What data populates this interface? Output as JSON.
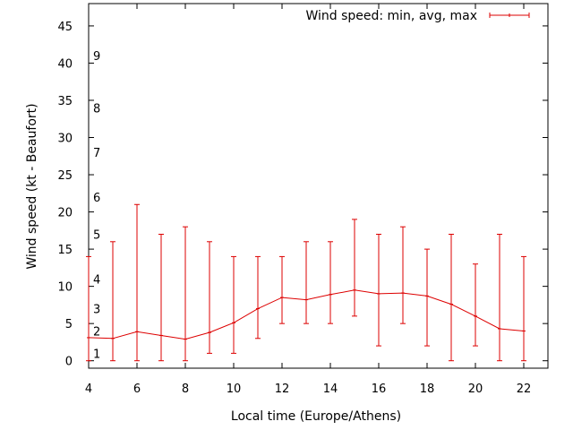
{
  "chart_data": {
    "type": "line",
    "title": "",
    "xlabel": "Local time (Europe/Athens)",
    "ylabel": "Wind speed (kt - Beaufort)",
    "xlim": [
      4,
      23
    ],
    "ylim": [
      -1,
      48
    ],
    "xticks": [
      4,
      6,
      8,
      10,
      12,
      14,
      16,
      18,
      20,
      22
    ],
    "yticks": [
      0,
      5,
      10,
      15,
      20,
      25,
      30,
      35,
      40,
      45
    ],
    "legend_position": "top-right",
    "grid": false,
    "line_color": "#dd0000",
    "series": [
      {
        "name": "Wind speed: min, avg, max",
        "x": [
          4,
          5,
          6,
          7,
          8,
          9,
          10,
          11,
          12,
          13,
          14,
          15,
          16,
          17,
          18,
          19,
          20,
          21,
          22
        ],
        "avg": [
          3.1,
          3.0,
          3.9,
          3.4,
          2.9,
          3.8,
          5.1,
          7.0,
          8.5,
          8.2,
          8.9,
          9.5,
          9.0,
          9.1,
          8.7,
          7.6,
          6.0,
          4.3,
          4.0
        ],
        "min": [
          0,
          0,
          0,
          0,
          0,
          1,
          1,
          3,
          5,
          5,
          5,
          6,
          2,
          5,
          2,
          0,
          2,
          0,
          0
        ],
        "max": [
          14,
          16,
          21,
          17,
          18,
          16,
          14,
          14,
          14,
          16,
          16,
          19,
          17,
          18,
          15,
          17,
          13,
          17,
          14
        ]
      }
    ],
    "beaufort_labels": [
      {
        "label": "1",
        "y": 1
      },
      {
        "label": "2",
        "y": 4
      },
      {
        "label": "3",
        "y": 7
      },
      {
        "label": "4",
        "y": 11
      },
      {
        "label": "5",
        "y": 17
      },
      {
        "label": "6",
        "y": 22
      },
      {
        "label": "7",
        "y": 28
      },
      {
        "label": "8",
        "y": 34
      },
      {
        "label": "9",
        "y": 41
      }
    ]
  }
}
